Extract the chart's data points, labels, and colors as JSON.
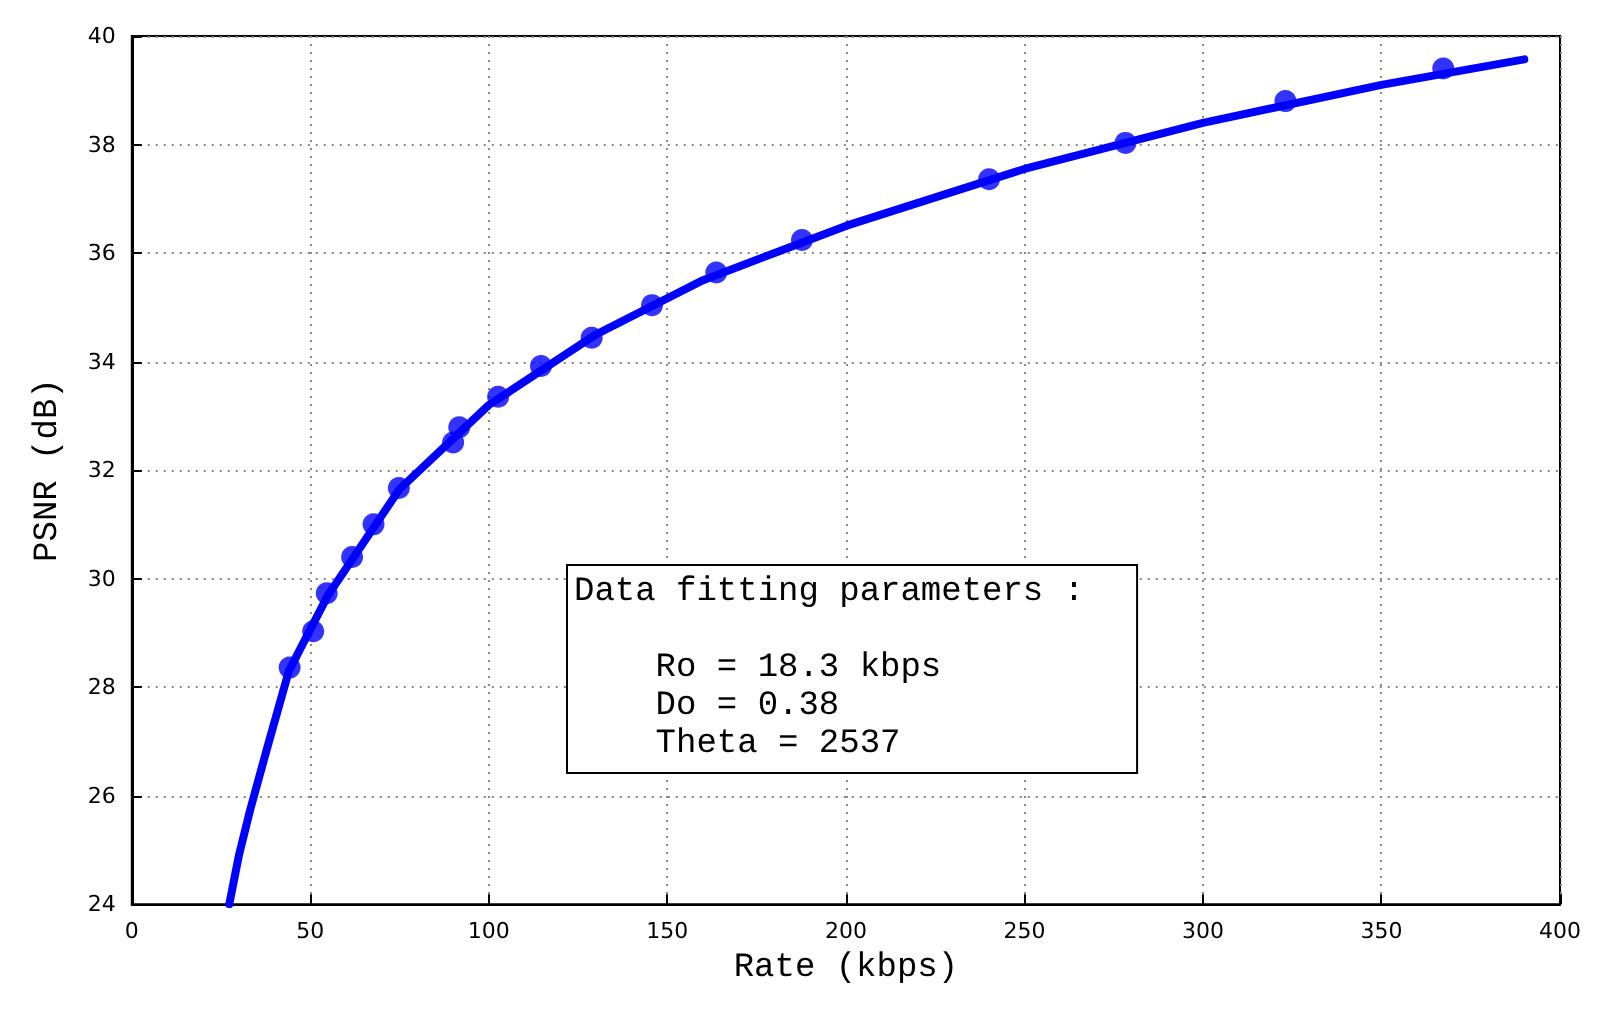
{
  "chart_data": {
    "type": "scatter",
    "xlabel": "Rate (kbps)",
    "ylabel": "PSNR (dB)",
    "xlim": [
      0,
      400
    ],
    "xticks": [
      0,
      50,
      100,
      150,
      200,
      250,
      300,
      350,
      400
    ],
    "ylim": [
      24,
      40
    ],
    "yticks": [
      24,
      26,
      28,
      30,
      32,
      34,
      36,
      38,
      40
    ],
    "grid": true,
    "marker": "circle",
    "annotations": [
      "Data fitting parameters :\n\n    Ro = 18.3 kbps\n    Do = 0.38\n    Theta = 2537"
    ],
    "series": [
      {
        "type": "line",
        "color": "#0000ff",
        "marker": "none",
        "line_style": "solid",
        "x": [
          27.3,
          30,
          33,
          38,
          44,
          55,
          75,
          100,
          130,
          160,
          200,
          250,
          300,
          350,
          390
        ],
        "values": [
          24,
          24.9,
          25.7,
          26.9,
          28.3,
          29.7,
          31.65,
          33.2,
          34.5,
          35.5,
          36.5,
          37.55,
          38.4,
          39.1,
          39.57
        ]
      },
      {
        "color": "#0000ff",
        "x": [
          44.2,
          50.8,
          54.6,
          61.7,
          67.7,
          74.8,
          90.0,
          91.7,
          102.6,
          114.6,
          128.8,
          145.7,
          163.7,
          187.7,
          240.1,
          278.3,
          323.1,
          367.3
        ],
        "values": [
          28.36,
          29.03,
          29.73,
          30.4,
          31.0,
          31.67,
          32.51,
          32.79,
          33.35,
          33.92,
          34.44,
          35.04,
          35.64,
          36.24,
          37.36,
          38.03,
          38.8,
          39.4
        ]
      }
    ]
  }
}
